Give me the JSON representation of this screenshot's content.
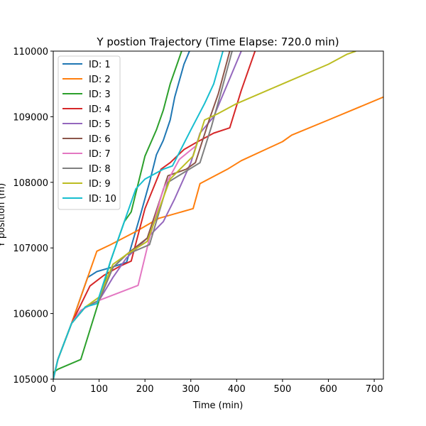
{
  "chart_data": {
    "type": "line",
    "title": "Y postion Trajectory (Time Elapse: 720.0 min)",
    "xlabel": "Time (min)",
    "ylabel": "Y position (m)",
    "xlim": [
      0,
      720
    ],
    "ylim": [
      105000,
      110000
    ],
    "xticks": [
      0,
      100,
      200,
      300,
      400,
      500,
      600,
      700
    ],
    "yticks": [
      105000,
      106000,
      107000,
      108000,
      109000,
      110000
    ],
    "grid": false,
    "legend_position": "upper-left",
    "series": [
      {
        "name": "ID: 1",
        "color": "#1f77b4",
        "points": [
          [
            0,
            105000
          ],
          [
            10,
            105300
          ],
          [
            40,
            105850
          ],
          [
            75,
            106550
          ],
          [
            95,
            106640
          ],
          [
            125,
            106700
          ],
          [
            160,
            106780
          ],
          [
            190,
            107500
          ],
          [
            210,
            108000
          ],
          [
            225,
            108420
          ],
          [
            240,
            108640
          ],
          [
            255,
            108950
          ],
          [
            265,
            109300
          ],
          [
            285,
            109800
          ],
          [
            300,
            110050
          ]
        ]
      },
      {
        "name": "ID: 2",
        "color": "#ff7f0e",
        "points": [
          [
            0,
            105000
          ],
          [
            10,
            105300
          ],
          [
            40,
            105850
          ],
          [
            95,
            106950
          ],
          [
            125,
            107050
          ],
          [
            180,
            107250
          ],
          [
            230,
            107450
          ],
          [
            305,
            107600
          ],
          [
            320,
            107980
          ],
          [
            380,
            108200
          ],
          [
            410,
            108330
          ],
          [
            500,
            108620
          ],
          [
            520,
            108720
          ],
          [
            600,
            108950
          ],
          [
            720,
            109300
          ]
        ]
      },
      {
        "name": "ID: 3",
        "color": "#2ca02c",
        "points": [
          [
            0,
            105100
          ],
          [
            10,
            105150
          ],
          [
            60,
            105300
          ],
          [
            100,
            106200
          ],
          [
            125,
            106800
          ],
          [
            155,
            107400
          ],
          [
            170,
            107550
          ],
          [
            200,
            108400
          ],
          [
            225,
            108800
          ],
          [
            240,
            109100
          ],
          [
            255,
            109500
          ],
          [
            270,
            109800
          ],
          [
            280,
            110000
          ]
        ]
      },
      {
        "name": "ID: 4",
        "color": "#d62728",
        "points": [
          [
            0,
            105000
          ],
          [
            10,
            105300
          ],
          [
            40,
            105850
          ],
          [
            80,
            106420
          ],
          [
            110,
            106580
          ],
          [
            145,
            106720
          ],
          [
            170,
            106800
          ],
          [
            200,
            107600
          ],
          [
            235,
            108200
          ],
          [
            255,
            108300
          ],
          [
            285,
            108500
          ],
          [
            310,
            108600
          ],
          [
            350,
            108750
          ],
          [
            385,
            108830
          ],
          [
            410,
            109400
          ],
          [
            440,
            110000
          ]
        ]
      },
      {
        "name": "ID: 5",
        "color": "#9467bd",
        "points": [
          [
            0,
            105000
          ],
          [
            10,
            105300
          ],
          [
            40,
            105850
          ],
          [
            70,
            106100
          ],
          [
            100,
            106200
          ],
          [
            130,
            106550
          ],
          [
            160,
            106850
          ],
          [
            205,
            107150
          ],
          [
            240,
            107400
          ],
          [
            265,
            107750
          ],
          [
            300,
            108300
          ],
          [
            320,
            108750
          ],
          [
            350,
            109000
          ],
          [
            380,
            109500
          ],
          [
            410,
            110000
          ]
        ]
      },
      {
        "name": "ID: 6",
        "color": "#8c564b",
        "points": [
          [
            0,
            105000
          ],
          [
            10,
            105300
          ],
          [
            40,
            105850
          ],
          [
            70,
            106100
          ],
          [
            100,
            106200
          ],
          [
            130,
            106700
          ],
          [
            160,
            106900
          ],
          [
            205,
            107150
          ],
          [
            250,
            108100
          ],
          [
            290,
            108200
          ],
          [
            310,
            108300
          ],
          [
            340,
            108950
          ],
          [
            360,
            109350
          ],
          [
            385,
            110000
          ]
        ]
      },
      {
        "name": "ID: 7",
        "color": "#e377c2",
        "points": [
          [
            0,
            105000
          ],
          [
            10,
            105300
          ],
          [
            40,
            105850
          ],
          [
            60,
            106050
          ],
          [
            100,
            106200
          ],
          [
            185,
            106430
          ],
          [
            210,
            107150
          ],
          [
            240,
            107900
          ],
          [
            275,
            108350
          ],
          [
            310,
            108550
          ]
        ]
      },
      {
        "name": "ID: 8",
        "color": "#7f7f7f",
        "points": [
          [
            0,
            105000
          ],
          [
            10,
            105300
          ],
          [
            40,
            105850
          ],
          [
            70,
            106100
          ],
          [
            100,
            106200
          ],
          [
            130,
            106700
          ],
          [
            160,
            106900
          ],
          [
            210,
            107050
          ],
          [
            250,
            108000
          ],
          [
            320,
            108300
          ],
          [
            345,
            108850
          ],
          [
            365,
            109350
          ],
          [
            390,
            110000
          ]
        ]
      },
      {
        "name": "ID: 9",
        "color": "#bcbd22",
        "points": [
          [
            0,
            105000
          ],
          [
            10,
            105300
          ],
          [
            40,
            105850
          ],
          [
            70,
            106100
          ],
          [
            100,
            106250
          ],
          [
            130,
            106750
          ],
          [
            160,
            106900
          ],
          [
            205,
            107100
          ],
          [
            255,
            108050
          ],
          [
            305,
            108400
          ],
          [
            330,
            108950
          ],
          [
            360,
            109050
          ],
          [
            400,
            109200
          ],
          [
            500,
            109500
          ],
          [
            600,
            109800
          ],
          [
            640,
            109950
          ],
          [
            660,
            110000
          ]
        ]
      },
      {
        "name": "ID: 10",
        "color": "#17becf",
        "points": [
          [
            0,
            105000
          ],
          [
            10,
            105300
          ],
          [
            40,
            105850
          ],
          [
            70,
            106100
          ],
          [
            95,
            106150
          ],
          [
            125,
            106800
          ],
          [
            140,
            107100
          ],
          [
            160,
            107500
          ],
          [
            180,
            107900
          ],
          [
            200,
            108050
          ],
          [
            240,
            108200
          ],
          [
            260,
            108250
          ],
          [
            300,
            108800
          ],
          [
            330,
            109200
          ],
          [
            350,
            109500
          ],
          [
            370,
            110000
          ]
        ]
      }
    ]
  }
}
